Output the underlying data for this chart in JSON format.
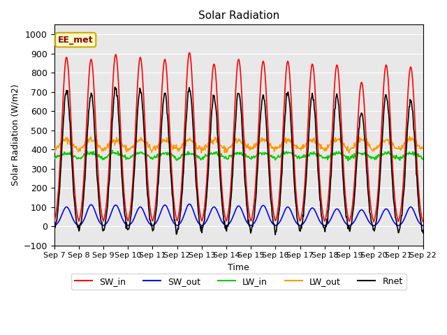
{
  "title": "Solar Radiation",
  "ylabel": "Solar Radiation (W/m2)",
  "xlabel": "Time",
  "ylim": [
    -100,
    1050
  ],
  "xlim": [
    0,
    360
  ],
  "background_color": "#e8e8e8",
  "label_text": "EE_met",
  "x_tick_labels": [
    "Sep 7",
    "Sep 8",
    "Sep 9",
    "Sep 10",
    "Sep 11",
    "Sep 12",
    "Sep 13",
    "Sep 14",
    "Sep 15",
    "Sep 16",
    "Sep 17",
    "Sep 18",
    "Sep 19",
    "Sep 20",
    "Sep 21",
    "Sep 22"
  ],
  "n_days": 15,
  "hours_per_day": 24,
  "dt": 0.5,
  "SW_in_peaks": [
    880,
    870,
    895,
    880,
    870,
    905,
    845,
    870,
    860,
    860,
    845,
    840,
    750,
    840,
    830
  ],
  "SW_out_peaks": [
    100,
    112,
    110,
    100,
    110,
    115,
    100,
    105,
    108,
    100,
    95,
    90,
    85,
    90,
    100
  ],
  "LW_in_base": 370,
  "LW_in_variation": 30,
  "LW_out_base": 400,
  "LW_out_variation": 50,
  "Rnet_night": -50,
  "colors": {
    "SW_in": "#ff0000",
    "SW_out": "#0000ff",
    "LW_in": "#00cc00",
    "LW_out": "#ff9900",
    "Rnet": "#000000"
  },
  "legend_entries": [
    "SW_in",
    "SW_out",
    "LW_in",
    "LW_out",
    "Rnet"
  ]
}
